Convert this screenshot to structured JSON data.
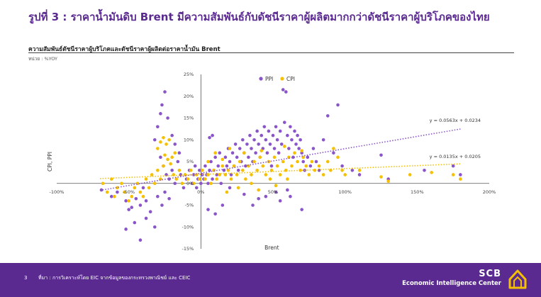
{
  "header": {
    "title": "รูปที่ 3 : ราคาน้ำมันดิบ Brent มีความสัมพันธ์กับดัชนีราคาผู้ผลิตมากกว่าดัชนีราคาผู้บริโภคของไทย",
    "subtitle": "ความสัมพันธ์ดัชนีราคาผู้บริโภคและดัชนีราคาผู้ผลิตต่อราคาน้ำมัน Brent",
    "unit": "หน่วย : %YOY"
  },
  "chart_data": {
    "type": "scatter",
    "xlabel": "Brent",
    "ylabel": "CPI, PPI",
    "xlim": [
      -1.0,
      2.0
    ],
    "ylim": [
      -0.15,
      0.25
    ],
    "x_ticks": [
      -1.0,
      -0.5,
      0,
      0.5,
      1.0,
      1.5,
      2.0
    ],
    "y_ticks": [
      -0.15,
      -0.1,
      -0.05,
      0,
      0.05,
      0.1,
      0.15,
      0.2,
      0.25
    ],
    "x_tick_labels": [
      "-100%",
      "-50%",
      "0%",
      "50%",
      "100%",
      "150%",
      "200%"
    ],
    "y_tick_labels": [
      "-15%",
      "-10%",
      "-5%",
      "0%",
      "5%",
      "10%",
      "15%",
      "20%",
      "25%"
    ],
    "legend_position": "top-center",
    "grid": false,
    "series": [
      {
        "name": "PPI",
        "color": "#8a55c9",
        "trendline": {
          "slope": 0.0563,
          "intercept": 0.0234,
          "label": "y = 0.0563x + 0.0234"
        },
        "points": [
          [
            -0.69,
            -0.015
          ],
          [
            -0.62,
            -0.03
          ],
          [
            -0.58,
            -0.02
          ],
          [
            -0.52,
            -0.04
          ],
          [
            -0.5,
            -0.06
          ],
          [
            -0.48,
            -0.055
          ],
          [
            -0.45,
            -0.035
          ],
          [
            -0.42,
            -0.05
          ],
          [
            -0.4,
            -0.01
          ],
          [
            -0.38,
            -0.04
          ],
          [
            -0.52,
            -0.105
          ],
          [
            -0.46,
            -0.09
          ],
          [
            -0.42,
            -0.13
          ],
          [
            -0.38,
            -0.08
          ],
          [
            -0.32,
            -0.1
          ],
          [
            -0.35,
            -0.065
          ],
          [
            -0.3,
            -0.03
          ],
          [
            -0.27,
            -0.05
          ],
          [
            -0.25,
            -0.02
          ],
          [
            -0.22,
            -0.035
          ],
          [
            -0.3,
            0.13
          ],
          [
            -0.28,
            0.16
          ],
          [
            -0.27,
            0.18
          ],
          [
            -0.25,
            0.21
          ],
          [
            -0.23,
            0.15
          ],
          [
            -0.2,
            0.11
          ],
          [
            -0.18,
            0.09
          ],
          [
            -0.15,
            0.07
          ],
          [
            -0.32,
            0.1
          ],
          [
            -0.28,
            0.06
          ],
          [
            -0.26,
            0.04
          ],
          [
            -0.24,
            0.02
          ],
          [
            -0.22,
            0.01
          ],
          [
            -0.2,
            0.03
          ],
          [
            -0.18,
            0.0
          ],
          [
            -0.16,
            0.05
          ],
          [
            -0.14,
            0.02
          ],
          [
            -0.12,
            -0.01
          ],
          [
            -0.1,
            0.01
          ],
          [
            -0.08,
            0.03
          ],
          [
            -0.06,
            0.0
          ],
          [
            -0.05,
            0.02
          ],
          [
            -0.04,
            0.04
          ],
          [
            -0.03,
            -0.01
          ],
          [
            -0.02,
            0.01
          ],
          [
            -0.01,
            0.03
          ],
          [
            0.0,
            0.0
          ],
          [
            0.01,
            0.02
          ],
          [
            0.02,
            0.01
          ],
          [
            0.03,
            0.04
          ],
          [
            0.04,
            0.02
          ],
          [
            0.05,
            0.0
          ],
          [
            0.06,
            0.03
          ],
          [
            0.07,
            0.05
          ],
          [
            0.08,
            0.01
          ],
          [
            0.09,
            0.03
          ],
          [
            0.1,
            0.06
          ],
          [
            0.11,
            0.02
          ],
          [
            0.12,
            0.04
          ],
          [
            0.13,
            0.07
          ],
          [
            0.08,
            0.11
          ],
          [
            0.06,
            0.105
          ],
          [
            0.05,
            -0.06
          ],
          [
            0.1,
            -0.07
          ],
          [
            0.15,
            -0.05
          ],
          [
            0.14,
            0.0
          ],
          [
            0.16,
            0.03
          ],
          [
            0.17,
            0.06
          ],
          [
            0.18,
            0.04
          ],
          [
            0.19,
            0.08
          ],
          [
            0.2,
            0.05
          ],
          [
            0.21,
            0.02
          ],
          [
            0.22,
            0.07
          ],
          [
            0.23,
            0.04
          ],
          [
            0.24,
            0.09
          ],
          [
            0.25,
            0.06
          ],
          [
            0.26,
            0.03
          ],
          [
            0.27,
            0.08
          ],
          [
            0.28,
            0.05
          ],
          [
            0.29,
            0.1
          ],
          [
            0.3,
            0.07
          ],
          [
            0.31,
            0.04
          ],
          [
            0.32,
            0.09
          ],
          [
            0.33,
            0.06
          ],
          [
            0.34,
            0.11
          ],
          [
            0.35,
            0.08
          ],
          [
            0.36,
            0.05
          ],
          [
            0.37,
            0.1
          ],
          [
            0.38,
            0.07
          ],
          [
            0.39,
            0.12
          ],
          [
            0.4,
            0.09
          ],
          [
            0.41,
            0.06
          ],
          [
            0.42,
            0.11
          ],
          [
            0.43,
            0.08
          ],
          [
            0.44,
            0.13
          ],
          [
            0.45,
            0.1
          ],
          [
            0.46,
            0.07
          ],
          [
            0.47,
            0.12
          ],
          [
            0.48,
            0.09
          ],
          [
            0.49,
            0.04
          ],
          [
            0.5,
            0.11
          ],
          [
            0.51,
            0.08
          ],
          [
            0.52,
            0.13
          ],
          [
            0.53,
            0.1
          ],
          [
            0.54,
            0.07
          ],
          [
            0.55,
            0.12
          ],
          [
            0.56,
            0.09
          ],
          [
            0.57,
            0.215
          ],
          [
            0.59,
            0.21
          ],
          [
            0.58,
            0.14
          ],
          [
            0.6,
            0.11
          ],
          [
            0.61,
            0.08
          ],
          [
            0.62,
            0.13
          ],
          [
            0.63,
            0.1
          ],
          [
            0.64,
            0.06
          ],
          [
            0.65,
            0.12
          ],
          [
            0.66,
            0.09
          ],
          [
            0.67,
            0.11
          ],
          [
            0.68,
            0.08
          ],
          [
            0.69,
            0.1
          ],
          [
            0.7,
            0.07
          ],
          [
            0.71,
            0.05
          ],
          [
            0.72,
            0.03
          ],
          [
            0.74,
            0.06
          ],
          [
            0.76,
            0.04
          ],
          [
            0.78,
            0.08
          ],
          [
            0.8,
            0.05
          ],
          [
            0.82,
            0.03
          ],
          [
            0.85,
            0.1
          ],
          [
            0.88,
            0.155
          ],
          [
            0.95,
            0.18
          ],
          [
            0.92,
            0.07
          ],
          [
            0.98,
            0.04
          ],
          [
            1.05,
            0.03
          ],
          [
            1.1,
            0.02
          ],
          [
            1.25,
            0.065
          ],
          [
            1.3,
            0.01
          ],
          [
            1.55,
            0.03
          ],
          [
            1.75,
            0.04
          ],
          [
            1.8,
            0.02
          ],
          [
            0.36,
            -0.05
          ],
          [
            0.45,
            -0.03
          ],
          [
            0.52,
            -0.02
          ],
          [
            0.55,
            -0.04
          ],
          [
            0.6,
            -0.015
          ],
          [
            0.7,
            -0.06
          ],
          [
            0.4,
            -0.035
          ],
          [
            0.3,
            -0.025
          ],
          [
            0.2,
            -0.01
          ],
          [
            0.62,
            -0.03
          ]
        ]
      },
      {
        "name": "CPI",
        "color": "#f5c000",
        "trendline": {
          "slope": 0.0135,
          "intercept": 0.0205,
          "label": "y = 0.0135x + 0.0205"
        },
        "points": [
          [
            -0.68,
            0.0
          ],
          [
            -0.65,
            -0.02
          ],
          [
            -0.62,
            0.01
          ],
          [
            -0.6,
            -0.03
          ],
          [
            -0.58,
            -0.01
          ],
          [
            -0.55,
            0.0
          ],
          [
            -0.53,
            -0.02
          ],
          [
            -0.5,
            -0.04
          ],
          [
            -0.48,
            -0.03
          ],
          [
            -0.46,
            -0.01
          ],
          [
            -0.44,
            0.0
          ],
          [
            -0.42,
            -0.02
          ],
          [
            -0.4,
            -0.03
          ],
          [
            -0.38,
            0.01
          ],
          [
            -0.36,
            -0.01
          ],
          [
            -0.34,
            0.02
          ],
          [
            -0.32,
            0.0
          ],
          [
            -0.3,
            0.03
          ],
          [
            -0.28,
            0.01
          ],
          [
            -0.26,
            0.04
          ],
          [
            -0.3,
            0.08
          ],
          [
            -0.28,
            0.095
          ],
          [
            -0.26,
            0.105
          ],
          [
            -0.24,
            0.09
          ],
          [
            -0.22,
            0.1
          ],
          [
            -0.2,
            0.06
          ],
          [
            -0.18,
            0.07
          ],
          [
            -0.25,
            0.065
          ],
          [
            -0.23,
            0.055
          ],
          [
            -0.21,
            0.045
          ],
          [
            -0.19,
            0.02
          ],
          [
            -0.17,
            0.01
          ],
          [
            -0.15,
            0.03
          ],
          [
            -0.13,
            0.0
          ],
          [
            -0.11,
            0.02
          ],
          [
            -0.09,
            0.01
          ],
          [
            -0.07,
            0.03
          ],
          [
            -0.05,
            0.0
          ],
          [
            -0.03,
            0.02
          ],
          [
            -0.01,
            0.01
          ],
          [
            0.01,
            0.03
          ],
          [
            0.03,
            0.01
          ],
          [
            0.05,
            0.02
          ],
          [
            0.07,
            0.0
          ],
          [
            0.09,
            0.03
          ],
          [
            0.11,
            0.01
          ],
          [
            0.13,
            0.02
          ],
          [
            0.15,
            0.04
          ],
          [
            0.17,
            0.02
          ],
          [
            0.19,
            0.03
          ],
          [
            0.21,
            0.01
          ],
          [
            0.23,
            0.04
          ],
          [
            0.25,
            0.02
          ],
          [
            0.27,
            0.05
          ],
          [
            0.29,
            0.03
          ],
          [
            0.31,
            0.01
          ],
          [
            0.33,
            0.04
          ],
          [
            0.35,
            0.02
          ],
          [
            0.37,
            0.05
          ],
          [
            0.39,
            0.03
          ],
          [
            0.41,
            0.06
          ],
          [
            0.43,
            0.04
          ],
          [
            0.45,
            0.02
          ],
          [
            0.47,
            0.05
          ],
          [
            0.49,
            0.03
          ],
          [
            0.51,
            0.06
          ],
          [
            0.53,
            0.04
          ],
          [
            0.55,
            0.02
          ],
          [
            0.57,
            0.05
          ],
          [
            0.59,
            0.03
          ],
          [
            0.61,
            0.06
          ],
          [
            0.63,
            0.04
          ],
          [
            0.65,
            0.07
          ],
          [
            0.67,
            0.05
          ],
          [
            0.69,
            0.03
          ],
          [
            0.71,
            0.06
          ],
          [
            0.73,
            0.04
          ],
          [
            0.75,
            0.02
          ],
          [
            0.77,
            0.05
          ],
          [
            0.79,
            0.03
          ],
          [
            0.82,
            0.04
          ],
          [
            0.85,
            0.02
          ],
          [
            0.88,
            0.05
          ],
          [
            0.9,
            0.03
          ],
          [
            0.92,
            0.08
          ],
          [
            0.95,
            0.06
          ],
          [
            0.98,
            0.03
          ],
          [
            1.0,
            0.02
          ],
          [
            1.1,
            0.03
          ],
          [
            1.25,
            0.015
          ],
          [
            1.3,
            0.005
          ],
          [
            1.45,
            0.02
          ],
          [
            1.6,
            0.025
          ],
          [
            1.75,
            0.02
          ],
          [
            1.8,
            0.01
          ],
          [
            0.18,
            -0.02
          ],
          [
            0.26,
            -0.01
          ],
          [
            0.4,
            -0.015
          ],
          [
            0.52,
            -0.005
          ],
          [
            0.1,
            0.07
          ],
          [
            0.2,
            0.08
          ],
          [
            0.3,
            0.07
          ],
          [
            0.42,
            0.075
          ],
          [
            0.58,
            0.085
          ],
          [
            0.7,
            0.075
          ],
          [
            0.6,
            0.01
          ],
          [
            0.48,
            0.01
          ],
          [
            0.35,
            0.0
          ],
          [
            0.15,
            0.055
          ],
          [
            0.05,
            0.05
          ]
        ]
      }
    ]
  },
  "footer": {
    "page_number": "3",
    "source": "ที่มา : การวิเคราะห์โดย EIC จากข้อมูลของกระทรวงพาณิชย์ และ CEIC",
    "brand_top": "SCB",
    "brand_bottom": "Economic Intelligence Center",
    "bg_color": "#5a2a91"
  }
}
